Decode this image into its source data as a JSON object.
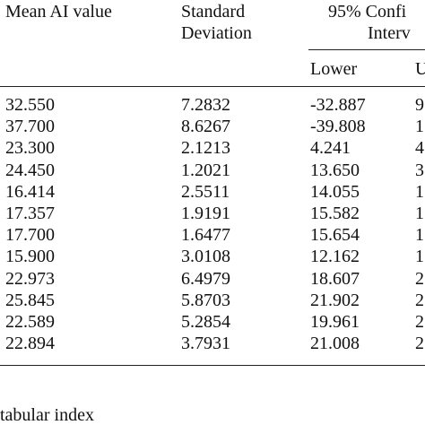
{
  "header": {
    "col_mean": "Mean AI value",
    "col_sd_line1": "Standard",
    "col_sd_line2": "Deviation",
    "col_ci_line1": "95% Confi",
    "col_ci_line2": "Interv",
    "col_lower": "Lower",
    "col_upper_fragment": "U"
  },
  "rows": [
    {
      "mean": "32.550",
      "sd": "7.2832",
      "lower": "-32.887",
      "upper_fragment": "9"
    },
    {
      "mean": "37.700",
      "sd": "8.6267",
      "lower": "-39.808",
      "upper_fragment": "1"
    },
    {
      "mean": "23.300",
      "sd": "2.1213",
      "lower": "4.241",
      "upper_fragment": "4"
    },
    {
      "mean": "24.450",
      "sd": "1.2021",
      "lower": "13.650",
      "upper_fragment": "3"
    },
    {
      "mean": "16.414",
      "sd": "2.5511",
      "lower": "14.055",
      "upper_fragment": "1"
    },
    {
      "mean": "17.357",
      "sd": "1.9191",
      "lower": "15.582",
      "upper_fragment": "1"
    },
    {
      "mean": "17.700",
      "sd": "1.6477",
      "lower": "15.654",
      "upper_fragment": "1"
    },
    {
      "mean": "15.900",
      "sd": "3.0108",
      "lower": "12.162",
      "upper_fragment": "1"
    },
    {
      "mean": "22.973",
      "sd": "6.4979",
      "lower": "18.607",
      "upper_fragment": "2"
    },
    {
      "mean": "25.845",
      "sd": "5.8703",
      "lower": "21.902",
      "upper_fragment": "2"
    },
    {
      "mean": "22.589",
      "sd": "5.2854",
      "lower": "19.961",
      "upper_fragment": "2"
    },
    {
      "mean": "22.894",
      "sd": "3.7931",
      "lower": "21.008",
      "upper_fragment": "2"
    }
  ],
  "footnote": "tabular index"
}
